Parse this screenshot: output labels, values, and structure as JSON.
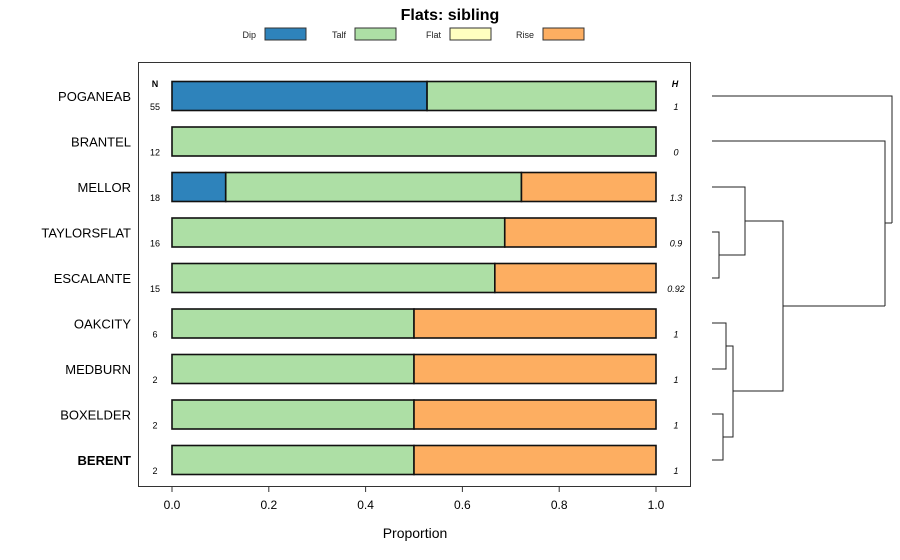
{
  "chart_data": {
    "type": "bar",
    "stacked": true,
    "orientation": "horizontal",
    "title": "Flats: sibling",
    "xlabel": "Proportion",
    "ylabel": "",
    "xlim": [
      0,
      1
    ],
    "x_ticks": [
      "0.0",
      "0.2",
      "0.4",
      "0.6",
      "0.8",
      "1.0"
    ],
    "legend": {
      "placement": "top",
      "entries": [
        "Dip",
        "Talf",
        "Flat",
        "Rise"
      ]
    },
    "colors": {
      "Dip": "#2e83bb",
      "Talf": "#addfa5",
      "Flat": "#ffffc0",
      "Rise": "#fdae61"
    },
    "n_header": "N",
    "h_header": "H",
    "categories": [
      "POGANEAB",
      "BRANTEL",
      "MELLOR",
      "TAYLORSFLAT",
      "ESCALANTE",
      "OAKCITY",
      "MEDBURN",
      "BOXELDER",
      "BERENT"
    ],
    "bold_category": "BERENT",
    "n": [
      "55",
      "12",
      "18",
      "16",
      "15",
      "6",
      "2",
      "2",
      "2"
    ],
    "h": [
      "1",
      "0",
      "1.3",
      "0.9",
      "0.92",
      "1",
      "1",
      "1",
      "1"
    ],
    "series": [
      {
        "name": "Dip",
        "values": [
          0.527,
          0,
          0.111,
          0,
          0,
          0,
          0,
          0,
          0
        ]
      },
      {
        "name": "Talf",
        "values": [
          0.473,
          1,
          0.611,
          0.6875,
          0.667,
          0.5,
          0.5,
          0.5,
          0.5
        ]
      },
      {
        "name": "Flat",
        "values": [
          0,
          0,
          0,
          0,
          0,
          0,
          0,
          0,
          0
        ]
      },
      {
        "name": "Rise",
        "values": [
          0,
          0,
          0.278,
          0.3125,
          0.333,
          0.5,
          0.5,
          0.5,
          0.5
        ]
      }
    ]
  }
}
